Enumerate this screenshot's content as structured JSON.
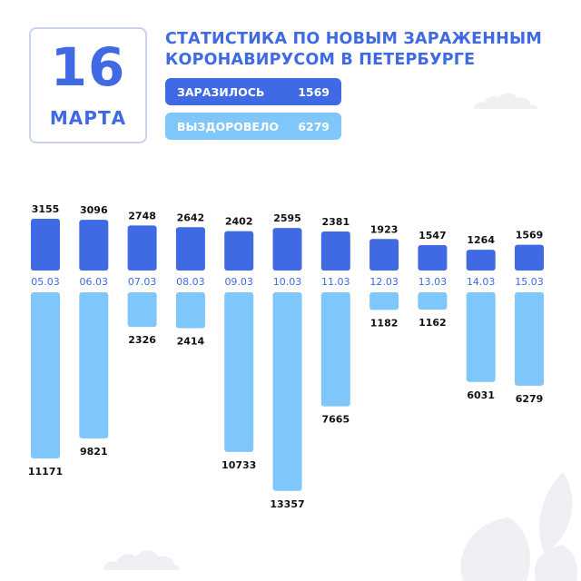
{
  "header": {
    "day": "16",
    "month": "МАРТА",
    "title_line1": "СТАТИСТИКА ПО НОВЫМ ЗАРАЖЕННЫМ",
    "title_line2": "КОРОНАВИРУСОМ В ПЕТЕРБУРГЕ"
  },
  "legend": {
    "infected_label": "ЗАРАЗИЛОСЬ",
    "infected_value": "1569",
    "recovered_label": "ВЫЗДОРОВЕЛО",
    "recovered_value": "6279"
  },
  "colors": {
    "infected": "#3f6ae3",
    "recovered": "#7fc6fb",
    "date_text": "#3f6ae3",
    "decoration": "#eef0f3"
  },
  "chart_data": {
    "type": "bar",
    "categories": [
      "05.03",
      "06.03",
      "07.03",
      "08.03",
      "09.03",
      "10.03",
      "11.03",
      "12.03",
      "13.03",
      "14.03",
      "15.03"
    ],
    "series": [
      {
        "name": "ЗАРАЗИЛОСЬ",
        "values": [
          3155,
          3096,
          2748,
          2642,
          2402,
          2595,
          2381,
          1923,
          1547,
          1264,
          1569
        ]
      },
      {
        "name": "ВЫЗДОРОВЕЛО",
        "values": [
          11171,
          9821,
          2326,
          2414,
          10733,
          13357,
          7665,
          1182,
          1162,
          6031,
          6279
        ]
      }
    ],
    "layout": "diverging: infected bars above date axis, recovered bars below",
    "grid": false,
    "legend": "top"
  }
}
